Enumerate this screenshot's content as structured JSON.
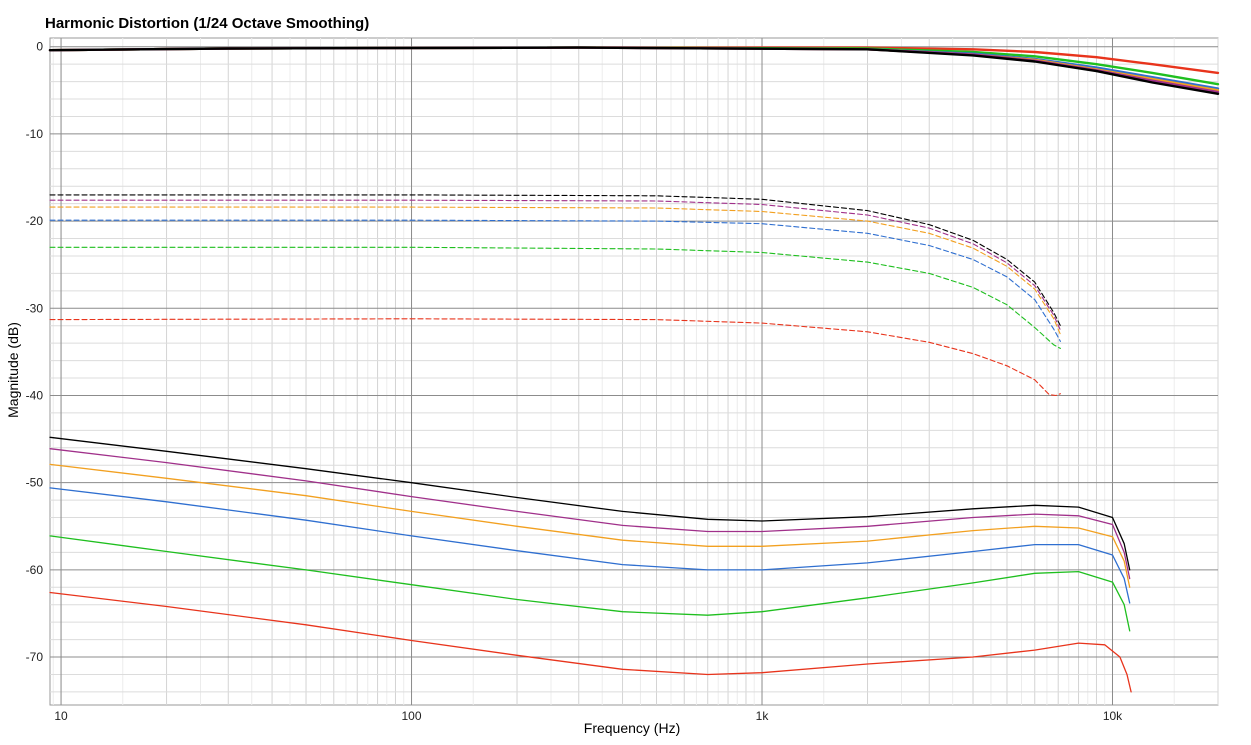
{
  "chart_data": {
    "type": "line",
    "title": "Harmonic Distortion (1/24 Octave Smoothing)",
    "xlabel": "Frequency (Hz)",
    "ylabel": "Magnitude (dB)",
    "xscale": "log",
    "xlim": [
      9.3,
      20000
    ],
    "ylim": [
      -75.5,
      1
    ],
    "grid": true,
    "legend": "none",
    "x_ticks": [
      {
        "value": 10,
        "label": "10"
      },
      {
        "value": 100,
        "label": "100"
      },
      {
        "value": 1000,
        "label": "1k"
      },
      {
        "value": 10000,
        "label": "10k"
      }
    ],
    "y_ticks": [
      {
        "value": 0,
        "label": "0"
      },
      {
        "value": -10,
        "label": "-10"
      },
      {
        "value": -20,
        "label": "-20"
      },
      {
        "value": -30,
        "label": "-30"
      },
      {
        "value": -40,
        "label": "-40"
      },
      {
        "value": -50,
        "label": "-50"
      },
      {
        "value": -60,
        "label": "-60"
      },
      {
        "value": -70,
        "label": "-70"
      }
    ],
    "series": [
      {
        "color": "#e8341c",
        "style": "solid",
        "width": 2.4,
        "points": [
          [
            9.3,
            -0.4
          ],
          [
            30,
            -0.2
          ],
          [
            300,
            -0.1
          ],
          [
            2000,
            -0.1
          ],
          [
            4000,
            -0.3
          ],
          [
            6000,
            -0.6
          ],
          [
            9000,
            -1.2
          ],
          [
            13000,
            -2.0
          ],
          [
            20000,
            -3.0
          ]
        ]
      },
      {
        "color": "#1fbf1f",
        "style": "solid",
        "width": 2.4,
        "points": [
          [
            9.3,
            -0.4
          ],
          [
            30,
            -0.2
          ],
          [
            300,
            -0.1
          ],
          [
            2000,
            -0.2
          ],
          [
            4000,
            -0.6
          ],
          [
            6000,
            -1.1
          ],
          [
            9000,
            -2.0
          ],
          [
            13000,
            -3.0
          ],
          [
            20000,
            -4.3
          ]
        ]
      },
      {
        "color": "#2f6fd0",
        "style": "solid",
        "width": 2.4,
        "points": [
          [
            9.3,
            -0.4
          ],
          [
            30,
            -0.2
          ],
          [
            300,
            -0.1
          ],
          [
            2000,
            -0.3
          ],
          [
            4000,
            -0.8
          ],
          [
            6000,
            -1.4
          ],
          [
            9000,
            -2.4
          ],
          [
            13000,
            -3.5
          ],
          [
            20000,
            -4.8
          ]
        ]
      },
      {
        "color": "#f2a020",
        "style": "solid",
        "width": 2.4,
        "points": [
          [
            9.3,
            -0.4
          ],
          [
            30,
            -0.2
          ],
          [
            300,
            -0.1
          ],
          [
            2000,
            -0.3
          ],
          [
            4000,
            -0.9
          ],
          [
            6000,
            -1.5
          ],
          [
            9000,
            -2.6
          ],
          [
            13000,
            -3.7
          ],
          [
            20000,
            -5.0
          ]
        ]
      },
      {
        "color": "#a0308a",
        "style": "solid",
        "width": 2.4,
        "points": [
          [
            9.3,
            -0.4
          ],
          [
            30,
            -0.2
          ],
          [
            300,
            -0.1
          ],
          [
            2000,
            -0.3
          ],
          [
            4000,
            -0.9
          ],
          [
            6000,
            -1.6
          ],
          [
            9000,
            -2.7
          ],
          [
            13000,
            -3.9
          ],
          [
            20000,
            -5.2
          ]
        ]
      },
      {
        "color": "#000000",
        "style": "solid",
        "width": 2.4,
        "points": [
          [
            9.3,
            -0.4
          ],
          [
            30,
            -0.2
          ],
          [
            300,
            -0.1
          ],
          [
            2000,
            -0.3
          ],
          [
            4000,
            -1.0
          ],
          [
            6000,
            -1.7
          ],
          [
            9000,
            -2.8
          ],
          [
            13000,
            -4.1
          ],
          [
            20000,
            -5.4
          ]
        ]
      },
      {
        "color": "#000000",
        "style": "dashed",
        "width": 1.1,
        "points": [
          [
            9.3,
            -17.0
          ],
          [
            100,
            -17.0
          ],
          [
            500,
            -17.1
          ],
          [
            1000,
            -17.5
          ],
          [
            2000,
            -18.8
          ],
          [
            3000,
            -20.4
          ],
          [
            4000,
            -22.2
          ],
          [
            5000,
            -24.4
          ],
          [
            6000,
            -27.0
          ],
          [
            6800,
            -30.5
          ],
          [
            7100,
            -32.0
          ]
        ]
      },
      {
        "color": "#a0308a",
        "style": "dashed",
        "width": 1.1,
        "points": [
          [
            9.3,
            -17.6
          ],
          [
            100,
            -17.6
          ],
          [
            500,
            -17.7
          ],
          [
            1000,
            -18.1
          ],
          [
            2000,
            -19.3
          ],
          [
            3000,
            -20.8
          ],
          [
            4000,
            -22.6
          ],
          [
            5000,
            -24.8
          ],
          [
            6000,
            -27.4
          ],
          [
            6800,
            -30.8
          ],
          [
            7100,
            -32.5
          ]
        ]
      },
      {
        "color": "#f2a020",
        "style": "dashed",
        "width": 1.1,
        "points": [
          [
            9.3,
            -18.4
          ],
          [
            100,
            -18.4
          ],
          [
            500,
            -18.5
          ],
          [
            1000,
            -18.9
          ],
          [
            2000,
            -20.0
          ],
          [
            3000,
            -21.4
          ],
          [
            4000,
            -23.1
          ],
          [
            5000,
            -25.2
          ],
          [
            6000,
            -27.8
          ],
          [
            6800,
            -31.2
          ],
          [
            7100,
            -33.0
          ]
        ]
      },
      {
        "color": "#2f6fd0",
        "style": "dashed",
        "width": 1.1,
        "points": [
          [
            9.3,
            -19.9
          ],
          [
            100,
            -19.9
          ],
          [
            500,
            -20.0
          ],
          [
            1000,
            -20.3
          ],
          [
            2000,
            -21.4
          ],
          [
            3000,
            -22.8
          ],
          [
            4000,
            -24.4
          ],
          [
            5000,
            -26.4
          ],
          [
            6000,
            -29.0
          ],
          [
            6800,
            -32.4
          ],
          [
            7100,
            -33.8
          ]
        ]
      },
      {
        "color": "#1fbf1f",
        "style": "dashed",
        "width": 1.1,
        "points": [
          [
            9.3,
            -23.0
          ],
          [
            100,
            -23.0
          ],
          [
            500,
            -23.2
          ],
          [
            1000,
            -23.6
          ],
          [
            2000,
            -24.7
          ],
          [
            3000,
            -26.0
          ],
          [
            4000,
            -27.6
          ],
          [
            5000,
            -29.6
          ],
          [
            6000,
            -32.2
          ],
          [
            6800,
            -34.2
          ],
          [
            7100,
            -34.6
          ]
        ]
      },
      {
        "color": "#e8341c",
        "style": "dashed",
        "width": 1.1,
        "points": [
          [
            9.3,
            -31.3
          ],
          [
            100,
            -31.2
          ],
          [
            500,
            -31.3
          ],
          [
            1000,
            -31.7
          ],
          [
            2000,
            -32.7
          ],
          [
            3000,
            -33.9
          ],
          [
            4000,
            -35.2
          ],
          [
            5000,
            -36.6
          ],
          [
            6000,
            -38.2
          ],
          [
            6600,
            -39.9
          ],
          [
            6900,
            -40.0
          ],
          [
            7100,
            -39.8
          ]
        ]
      },
      {
        "color": "#000000",
        "style": "solid",
        "width": 1.3,
        "points": [
          [
            9.3,
            -44.8
          ],
          [
            20,
            -46.4
          ],
          [
            50,
            -48.4
          ],
          [
            100,
            -50.0
          ],
          [
            200,
            -51.7
          ],
          [
            400,
            -53.3
          ],
          [
            700,
            -54.2
          ],
          [
            1000,
            -54.4
          ],
          [
            2000,
            -53.9
          ],
          [
            4000,
            -53.0
          ],
          [
            6000,
            -52.6
          ],
          [
            8000,
            -52.8
          ],
          [
            10000,
            -54.0
          ],
          [
            10800,
            -57.0
          ],
          [
            11200,
            -60.0
          ]
        ]
      },
      {
        "color": "#a0308a",
        "style": "solid",
        "width": 1.3,
        "points": [
          [
            9.3,
            -46.1
          ],
          [
            20,
            -47.7
          ],
          [
            50,
            -49.8
          ],
          [
            100,
            -51.6
          ],
          [
            200,
            -53.3
          ],
          [
            400,
            -54.9
          ],
          [
            700,
            -55.6
          ],
          [
            1000,
            -55.6
          ],
          [
            2000,
            -55.0
          ],
          [
            4000,
            -54.0
          ],
          [
            6000,
            -53.6
          ],
          [
            8000,
            -53.8
          ],
          [
            10000,
            -54.8
          ],
          [
            10800,
            -58.0
          ],
          [
            11200,
            -61.0
          ]
        ]
      },
      {
        "color": "#f2a020",
        "style": "solid",
        "width": 1.3,
        "points": [
          [
            9.3,
            -47.9
          ],
          [
            20,
            -49.5
          ],
          [
            50,
            -51.5
          ],
          [
            100,
            -53.3
          ],
          [
            200,
            -55.0
          ],
          [
            400,
            -56.6
          ],
          [
            700,
            -57.3
          ],
          [
            1000,
            -57.3
          ],
          [
            2000,
            -56.7
          ],
          [
            4000,
            -55.5
          ],
          [
            6000,
            -55.0
          ],
          [
            8000,
            -55.2
          ],
          [
            10000,
            -56.2
          ],
          [
            10800,
            -59.0
          ],
          [
            11200,
            -62.0
          ]
        ]
      },
      {
        "color": "#2f6fd0",
        "style": "solid",
        "width": 1.3,
        "points": [
          [
            9.3,
            -50.6
          ],
          [
            20,
            -52.2
          ],
          [
            50,
            -54.3
          ],
          [
            100,
            -56.1
          ],
          [
            200,
            -57.8
          ],
          [
            400,
            -59.4
          ],
          [
            700,
            -60.0
          ],
          [
            1000,
            -60.0
          ],
          [
            2000,
            -59.2
          ],
          [
            4000,
            -57.9
          ],
          [
            6000,
            -57.1
          ],
          [
            8000,
            -57.1
          ],
          [
            10000,
            -58.3
          ],
          [
            10800,
            -61.0
          ],
          [
            11200,
            -63.8
          ]
        ]
      },
      {
        "color": "#1fbf1f",
        "style": "solid",
        "width": 1.3,
        "points": [
          [
            9.3,
            -56.1
          ],
          [
            20,
            -57.9
          ],
          [
            50,
            -60.0
          ],
          [
            100,
            -61.7
          ],
          [
            200,
            -63.4
          ],
          [
            400,
            -64.8
          ],
          [
            700,
            -65.2
          ],
          [
            1000,
            -64.8
          ],
          [
            2000,
            -63.2
          ],
          [
            4000,
            -61.5
          ],
          [
            6000,
            -60.4
          ],
          [
            8000,
            -60.2
          ],
          [
            10000,
            -61.4
          ],
          [
            10800,
            -64.0
          ],
          [
            11200,
            -67.0
          ]
        ]
      },
      {
        "color": "#e8341c",
        "style": "solid",
        "width": 1.3,
        "points": [
          [
            9.3,
            -62.6
          ],
          [
            20,
            -64.2
          ],
          [
            50,
            -66.3
          ],
          [
            100,
            -68.1
          ],
          [
            200,
            -69.8
          ],
          [
            400,
            -71.4
          ],
          [
            700,
            -72.0
          ],
          [
            1000,
            -71.8
          ],
          [
            2000,
            -70.8
          ],
          [
            4000,
            -70.0
          ],
          [
            6000,
            -69.2
          ],
          [
            8000,
            -68.4
          ],
          [
            9500,
            -68.6
          ],
          [
            10500,
            -70.0
          ],
          [
            11000,
            -72.0
          ],
          [
            11300,
            -74.0
          ]
        ]
      }
    ]
  }
}
